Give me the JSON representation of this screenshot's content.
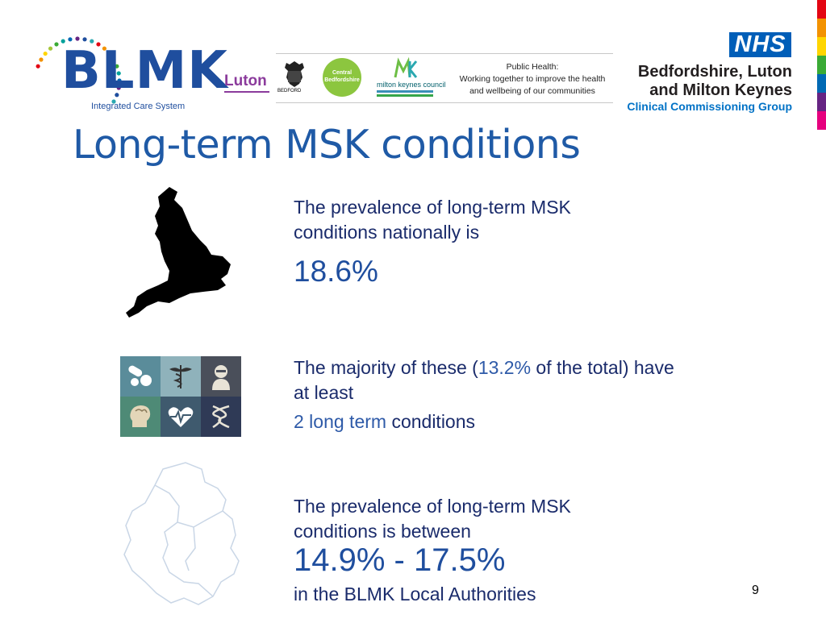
{
  "header": {
    "blmk": {
      "word": "BLMK",
      "subtitle": "Integrated Care System"
    },
    "luton": "Luton",
    "bedford": "BEDFORD",
    "central_bedfordshire": [
      "Central",
      "Bedfordshire"
    ],
    "milton_keynes": "milton keynes council",
    "public_health": [
      "Public Health:",
      "Working together to improve the health",
      "and wellbeing of our communities"
    ],
    "nhs": "NHS",
    "ccg_name": [
      "Bedfordshire, Luton",
      "and Milton Keynes"
    ],
    "ccg_sub": "Clinical Commissioning Group"
  },
  "title": "Long-term MSK conditions",
  "section1": {
    "text": "The prevalence of long-term MSK conditions nationally is",
    "value": "18.6%"
  },
  "section2": {
    "text_a": "The majority of these (",
    "value": "13.2%",
    "text_b": " of the total) have at least",
    "highlight": "2 long term",
    "text_c": " conditions"
  },
  "section3": {
    "text": "The prevalence of long-term MSK conditions is between",
    "value": "14.9% - 17.5%",
    "text_b": "in the BLMK Local Authorities"
  },
  "page_number": "9",
  "colors": {
    "strip": [
      "#e30613",
      "#f39200",
      "#ffd500",
      "#3aaa35",
      "#0069b4",
      "#662483",
      "#e6007e"
    ],
    "title": "#1f5aa6",
    "nhs_blue": "#005eb8"
  }
}
